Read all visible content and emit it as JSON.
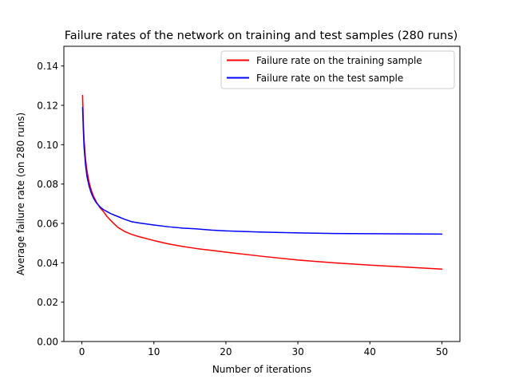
{
  "chart_data": {
    "type": "line",
    "title": "Failure rates of the network on training and test samples (280 runs)",
    "xlabel": "Number of iterations",
    "ylabel": "Average failure rate (on 280 runs)",
    "xlim": [
      -2.5,
      52.5
    ],
    "ylim": [
      0.0,
      0.15
    ],
    "xticks": [
      0,
      10,
      20,
      30,
      40,
      50
    ],
    "xtick_labels": [
      "0",
      "10",
      "20",
      "30",
      "40",
      "50"
    ],
    "yticks": [
      0.0,
      0.02,
      0.04,
      0.06,
      0.08,
      0.1,
      0.12,
      0.14
    ],
    "ytick_labels": [
      "0.00",
      "0.02",
      "0.04",
      "0.06",
      "0.08",
      "0.10",
      "0.12",
      "0.14"
    ],
    "grid": false,
    "legend_position": "top-right",
    "series": [
      {
        "name": "Failure rate on the training sample",
        "color": "#ff0000",
        "x": [
          0.1,
          0.2,
          0.3,
          0.5,
          0.7,
          1.0,
          1.3,
          1.6,
          2.0,
          2.5,
          3.0,
          3.5,
          4.0,
          5.0,
          6.0,
          7.0,
          8.0,
          10.0,
          12.0,
          14.0,
          16.0,
          18.0,
          20.0,
          25.0,
          30.0,
          35.0,
          40.0,
          45.0,
          50.0
        ],
        "y": [
          0.125,
          0.112,
          0.103,
          0.093,
          0.087,
          0.081,
          0.077,
          0.074,
          0.071,
          0.068,
          0.066,
          0.0635,
          0.0615,
          0.058,
          0.0558,
          0.0543,
          0.0532,
          0.0513,
          0.0496,
          0.0483,
          0.0472,
          0.0463,
          0.0454,
          0.0433,
          0.0414,
          0.04,
          0.0388,
          0.0378,
          0.0368
        ]
      },
      {
        "name": "Failure rate on the test sample",
        "color": "#0000ff",
        "x": [
          0.1,
          0.2,
          0.3,
          0.5,
          0.7,
          1.0,
          1.3,
          1.6,
          2.0,
          2.5,
          3.0,
          3.5,
          4.0,
          5.0,
          6.0,
          7.0,
          8.0,
          10.0,
          12.0,
          14.0,
          16.0,
          18.0,
          20.0,
          25.0,
          30.0,
          35.0,
          40.0,
          45.0,
          50.0
        ],
        "y": [
          0.119,
          0.108,
          0.099,
          0.09,
          0.084,
          0.079,
          0.0755,
          0.073,
          0.0705,
          0.0685,
          0.067,
          0.066,
          0.065,
          0.0635,
          0.062,
          0.0608,
          0.0602,
          0.0592,
          0.0583,
          0.0576,
          0.0572,
          0.0566,
          0.0562,
          0.0556,
          0.0552,
          0.0549,
          0.0548,
          0.0547,
          0.0546
        ]
      }
    ]
  }
}
